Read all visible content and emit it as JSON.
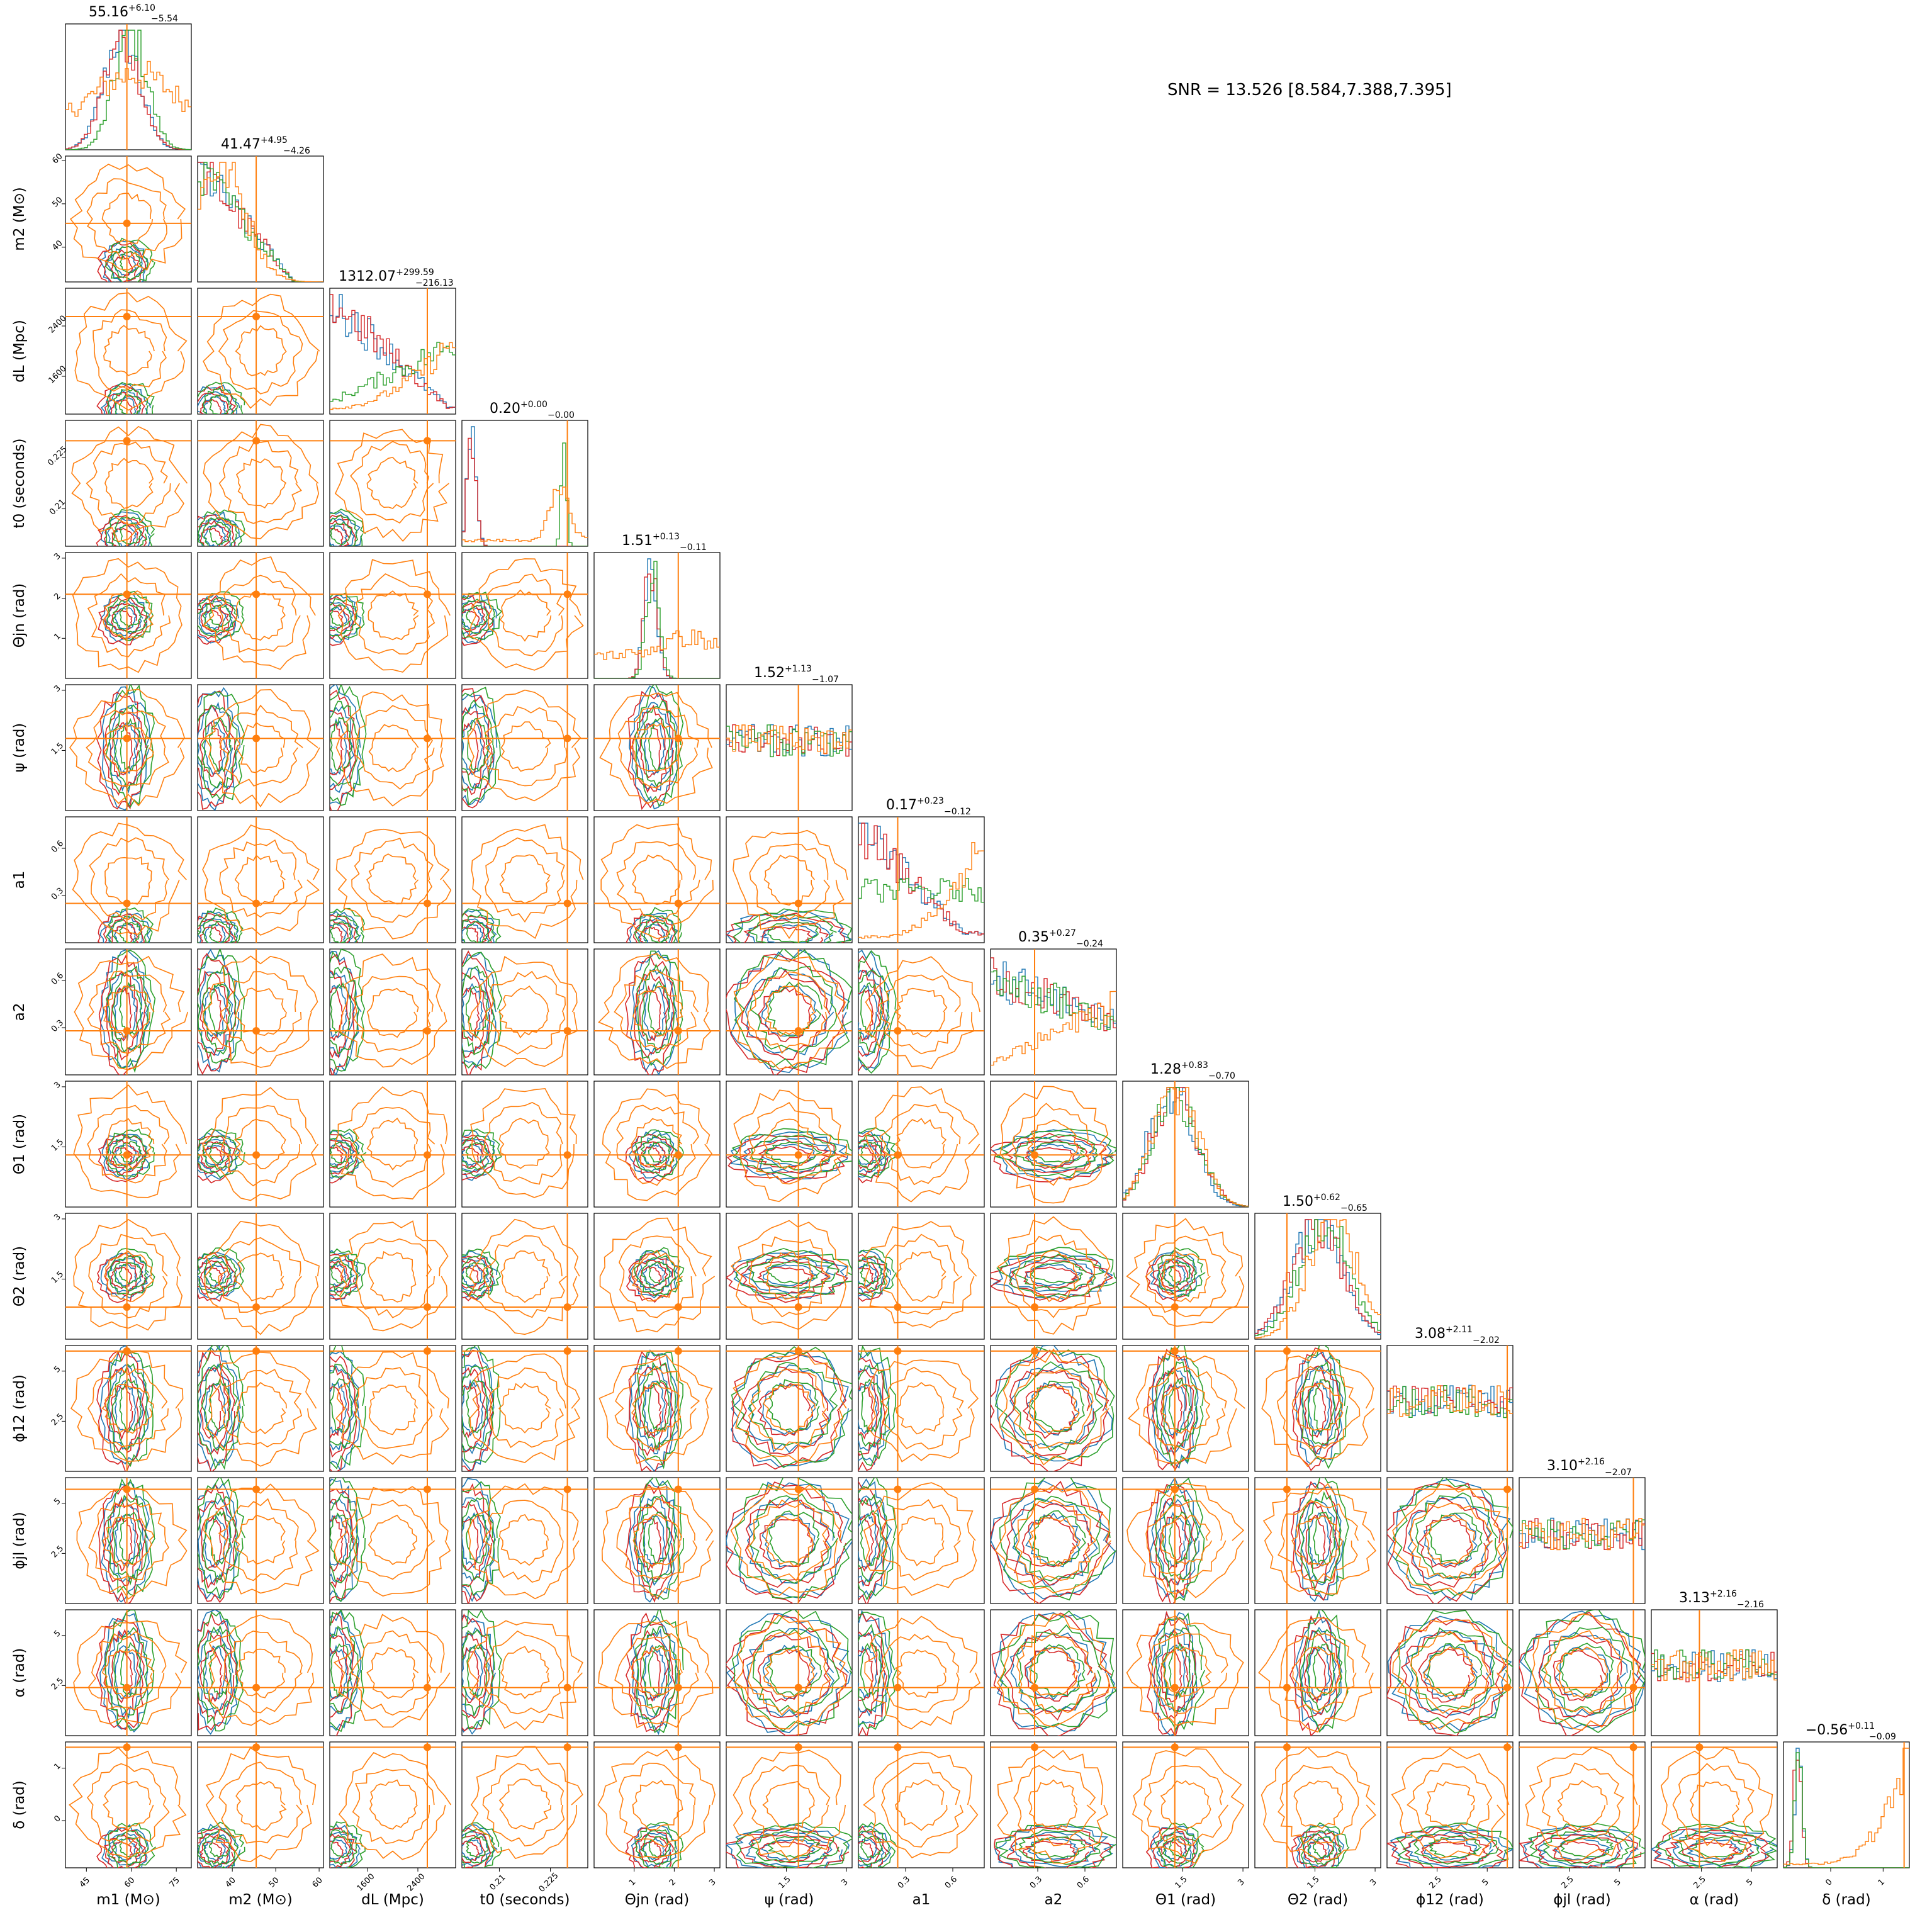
{
  "chart_data": {
    "type": "corner",
    "annotation": "SNR = 13.526 [8.584,7.388,7.395]",
    "colors": {
      "blue": "#1f77b4",
      "orange": "#ff7f0e",
      "green": "#2ca02c",
      "red": "#d62728"
    },
    "parameters": [
      {
        "label": "m1 (M⊙)",
        "ylabel": "",
        "median": "55.16",
        "plus": "+6.10",
        "minus": "−5.54",
        "range": [
          38,
          80
        ],
        "xticks": [
          45,
          60,
          75
        ],
        "yticks": [],
        "truth": 58.5,
        "mode": 58
      },
      {
        "label": "m2 (M⊙)",
        "ylabel": "m2 (M⊙)",
        "median": "41.47",
        "plus": "+4.95",
        "minus": "−4.26",
        "range": [
          32,
          61
        ],
        "xticks": [
          40,
          50,
          60
        ],
        "yticks": [
          40,
          50,
          60
        ],
        "truth": 45.5,
        "mode": 36
      },
      {
        "label": "dL (Mpc)",
        "ylabel": "dL (Mpc)",
        "median": "1312.07",
        "plus": "+299.59",
        "minus": "−216.13",
        "range": [
          1000,
          3000
        ],
        "xticks": [
          1600,
          2400
        ],
        "yticks": [
          1600,
          2400
        ],
        "truth": 2550,
        "mode": 1100
      },
      {
        "label": "t0 (seconds)",
        "ylabel": "t0 (seconds)",
        "median": "0.20",
        "plus": "+0.00",
        "minus": "−0.00",
        "range": [
          0.199,
          0.236
        ],
        "xticks": [
          0.21,
          0.225
        ],
        "yticks": [
          0.21,
          0.225
        ],
        "truth": 0.23,
        "mode": 0.202
      },
      {
        "label": "Θjn (rad)",
        "ylabel": "Θjn (rad)",
        "median": "1.51",
        "plus": "+0.13",
        "minus": "−0.11",
        "range": [
          0,
          3.14
        ],
        "xticks": [
          1,
          2,
          3
        ],
        "yticks": [
          1,
          2,
          3
        ],
        "truth": 2.1,
        "mode": 1.5
      },
      {
        "label": "ψ (rad)",
        "ylabel": "ψ (rad)",
        "median": "1.52",
        "plus": "+1.13",
        "minus": "−1.07",
        "range": [
          0,
          3.14
        ],
        "xticks": [
          1.5,
          3.0
        ],
        "yticks": [
          1.5,
          3.0
        ],
        "truth": 1.8,
        "mode": null
      },
      {
        "label": "a1",
        "ylabel": "a1",
        "median": "0.17",
        "plus": "+0.23",
        "minus": "−0.12",
        "range": [
          0,
          0.8
        ],
        "xticks": [
          0.3,
          0.6
        ],
        "yticks": [
          0.3,
          0.6
        ],
        "truth": 0.25,
        "mode": 0.05
      },
      {
        "label": "a2",
        "ylabel": "a2",
        "median": "0.35",
        "plus": "+0.27",
        "minus": "−0.24",
        "range": [
          0,
          0.8
        ],
        "xticks": [
          0.3,
          0.6
        ],
        "yticks": [
          0.3,
          0.6
        ],
        "truth": 0.28,
        "mode": null
      },
      {
        "label": "Θ1 (rad)",
        "ylabel": "Θ1 (rad)",
        "median": "1.28",
        "plus": "+0.83",
        "minus": "−0.70",
        "range": [
          0,
          3.14
        ],
        "xticks": [
          1.5,
          3.0
        ],
        "yticks": [
          1.5,
          3.0
        ],
        "truth": 1.3,
        "mode": 1.3
      },
      {
        "label": "Θ2 (rad)",
        "ylabel": "Θ2 (rad)",
        "median": "1.50",
        "plus": "+0.62",
        "minus": "−0.65",
        "range": [
          0,
          3.14
        ],
        "xticks": [
          1.5,
          3.0
        ],
        "yticks": [
          1.5,
          3.0
        ],
        "truth": 0.8,
        "mode": 1.6
      },
      {
        "label": "ϕ12 (rad)",
        "ylabel": "ϕ12 (rad)",
        "median": "3.08",
        "plus": "+2.11",
        "minus": "−2.02",
        "range": [
          0,
          6.28
        ],
        "xticks": [
          2.5,
          5.0
        ],
        "yticks": [
          2.5,
          5.0
        ],
        "truth": 6.0,
        "mode": null
      },
      {
        "label": "ϕjl (rad)",
        "ylabel": "ϕjl (rad)",
        "median": "3.10",
        "plus": "+2.16",
        "minus": "−2.07",
        "range": [
          0,
          6.28
        ],
        "xticks": [
          2.5,
          5.0
        ],
        "yticks": [
          2.5,
          5.0
        ],
        "truth": 5.7,
        "mode": null
      },
      {
        "label": "α (rad)",
        "ylabel": "α (rad)",
        "median": "3.13",
        "plus": "+2.16",
        "minus": "−2.16",
        "range": [
          0,
          6.28
        ],
        "xticks": [
          2.5,
          5.0
        ],
        "yticks": [
          2.5,
          5.0
        ],
        "truth": 2.4,
        "mode": null
      },
      {
        "label": "δ (rad)",
        "ylabel": "δ (rad)",
        "median": "−0.56",
        "plus": "+0.11",
        "minus": "−0.09",
        "range": [
          -0.9,
          1.5
        ],
        "xticks": [
          0,
          1
        ],
        "yticks": [
          0,
          1
        ],
        "truth": 1.4,
        "mode": -0.55
      }
    ]
  }
}
